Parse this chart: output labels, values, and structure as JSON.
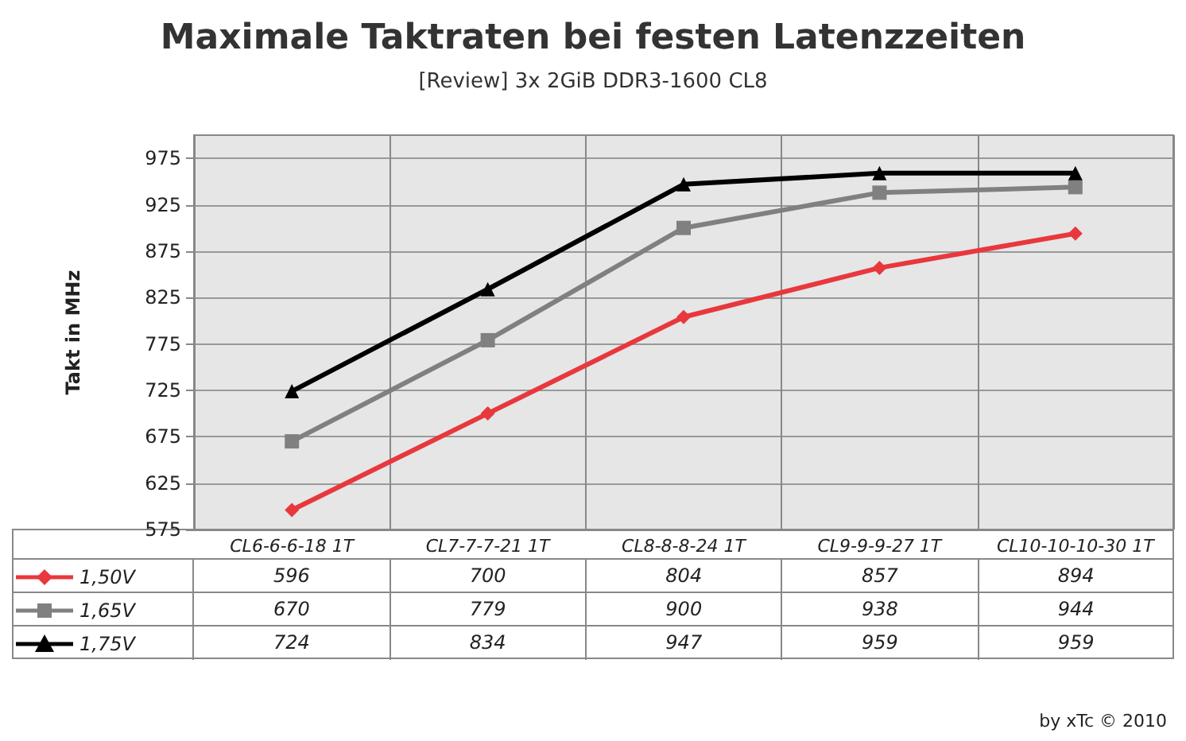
{
  "chart_data": {
    "type": "line",
    "title": "Maximale Taktraten bei festen Latenzzeiten",
    "subtitle": "[Review] 3x 2GiB DDR3-1600 CL8",
    "ylabel": "Takt in MHz",
    "categories": [
      "CL6-6-6-18 1T",
      "CL7-7-7-21 1T",
      "CL8-8-8-24 1T",
      "CL9-9-9-27 1T",
      "CL10-10-10-30 1T"
    ],
    "series": [
      {
        "name": "1,50V",
        "color": "#e8383d",
        "marker": "diamond",
        "values": [
          596,
          700,
          804,
          857,
          894
        ]
      },
      {
        "name": "1,65V",
        "color": "#808080",
        "marker": "square",
        "values": [
          670,
          779,
          900,
          938,
          944
        ]
      },
      {
        "name": "1,75V",
        "color": "#000000",
        "marker": "triangle",
        "values": [
          724,
          834,
          947,
          959,
          959
        ]
      }
    ],
    "ylim": [
      575,
      1000
    ],
    "yticks": [
      575,
      625,
      675,
      725,
      775,
      825,
      875,
      925,
      975
    ],
    "grid": true,
    "legend": "bottom",
    "data_labels": true,
    "line_style": "solid",
    "annotations": [
      "by xTc © 2010"
    ]
  }
}
